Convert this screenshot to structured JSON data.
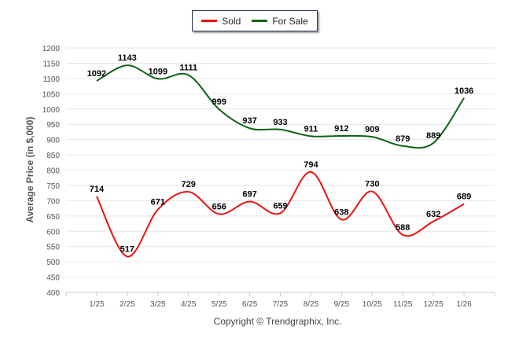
{
  "chart_data": {
    "type": "line",
    "title": "",
    "xlabel": "",
    "ylabel": "Average Price (in $,000)",
    "ylim": [
      400,
      1200
    ],
    "ytick_step": 50,
    "grid": true,
    "legend_position": "top-center",
    "categories": [
      "1/25",
      "2/25",
      "3/25",
      "4/25",
      "5/25",
      "6/25",
      "7/25",
      "8/25",
      "9/25",
      "10/25",
      "11/25",
      "12/25",
      "1/26"
    ],
    "series": [
      {
        "name": "Sold",
        "color": "#ee1111",
        "values": [
          714,
          517,
          671,
          729,
          656,
          697,
          659,
          794,
          638,
          730,
          588,
          632,
          689
        ]
      },
      {
        "name": "For Sale",
        "color": "#0a6414",
        "values": [
          1092,
          1143,
          1099,
          1111,
          999,
          937,
          933,
          911,
          912,
          909,
          879,
          889,
          1036
        ]
      }
    ],
    "footer": "Copyright © Trendgraphix, Inc."
  }
}
